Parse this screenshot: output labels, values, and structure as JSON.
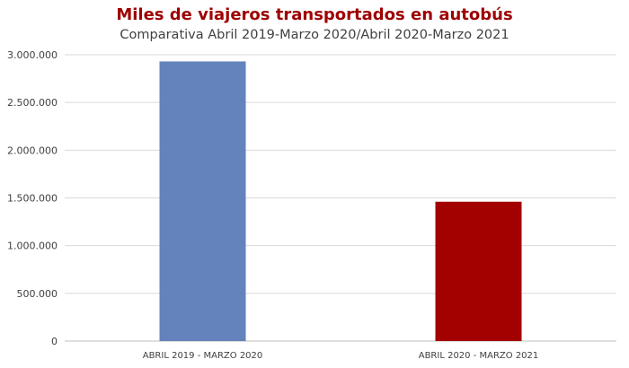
{
  "chart_data": {
    "type": "bar",
    "title": "Miles de viajeros transportados en autobús",
    "subtitle": "Comparativa Abril 2019-Marzo 2020/Abril 2020-Marzo 2021",
    "categories": [
      "ABRIL 2019 - MARZO 2020",
      "ABRIL 2020 - MARZO 2021"
    ],
    "values": [
      2930000,
      1460000
    ],
    "bar_colors": [
      "#6482bb",
      "#a30000"
    ],
    "ylim": [
      0,
      3000000
    ],
    "y_ticks": [
      0,
      500000,
      1000000,
      1500000,
      2000000,
      2500000,
      3000000
    ],
    "y_tick_labels": [
      "0",
      "500.000",
      "1.000.000",
      "1.500.000",
      "2.000.000",
      "2.500.000",
      "3.000.000"
    ],
    "grid": true,
    "legend": "none",
    "xlabel": "",
    "ylabel": ""
  }
}
